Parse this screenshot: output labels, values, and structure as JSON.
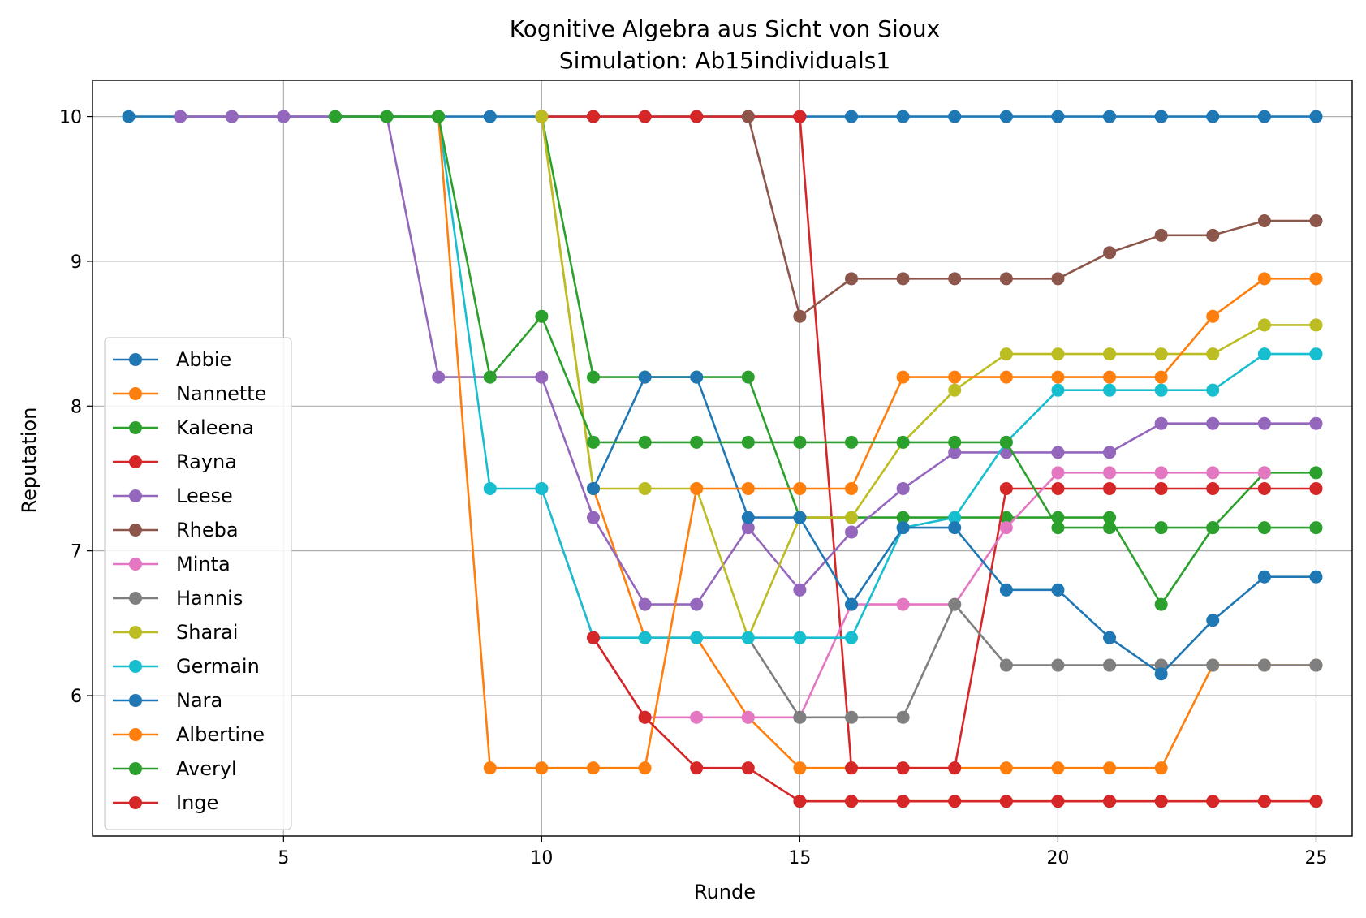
{
  "chart_data": {
    "type": "line",
    "title": "Kognitive Algebra aus Sicht von Sioux",
    "subtitle": "Simulation: Ab15individuals1",
    "xlabel": "Runde",
    "ylabel": "Reputation",
    "xlim": [
      1.3,
      25.7
    ],
    "ylim": [
      5.03,
      10.25
    ],
    "xticks": [
      5,
      10,
      15,
      20,
      25
    ],
    "yticks": [
      6,
      7,
      8,
      9,
      10
    ],
    "grid": true,
    "legend_position": "lower-left",
    "series": [
      {
        "name": "Abbie",
        "color": "#1f77b4",
        "x": [
          2,
          3,
          4,
          5,
          6,
          7,
          8,
          9,
          10,
          11,
          12,
          13,
          14,
          15,
          16,
          17,
          18,
          19,
          20,
          21,
          22,
          23,
          24,
          25
        ],
        "y": [
          10,
          10,
          10,
          10,
          10,
          10,
          10,
          10,
          10,
          10,
          10,
          10,
          10,
          10,
          10,
          10,
          10,
          10,
          10,
          10,
          10,
          10,
          10,
          10
        ]
      },
      {
        "name": "Nannette",
        "color": "#ff7f0e",
        "x": [
          10,
          11,
          12,
          13,
          14,
          15,
          16,
          17,
          18,
          19,
          20,
          21,
          22,
          23,
          24,
          25
        ],
        "y": [
          10,
          7.43,
          6.4,
          6.4,
          5.85,
          5.5,
          5.5,
          5.5,
          5.5,
          5.5,
          5.5,
          5.5,
          5.5,
          6.21,
          6.21,
          6.21
        ]
      },
      {
        "name": "Kaleena",
        "color": "#2ca02c",
        "x": [
          10,
          11,
          12,
          13,
          14,
          15,
          16,
          17,
          18,
          19,
          20,
          21,
          22,
          23,
          24,
          25
        ],
        "y": [
          10,
          8.2,
          8.2,
          8.2,
          8.2,
          7.23,
          7.23,
          7.23,
          7.23,
          7.23,
          7.23,
          7.23,
          6.63,
          7.16,
          7.54,
          7.54
        ]
      },
      {
        "name": "Rayna",
        "color": "#d62728",
        "x": [
          10,
          11,
          12,
          13,
          14,
          15,
          16,
          17,
          18,
          19,
          20,
          21,
          22,
          23,
          24,
          25
        ],
        "y": [
          10,
          10,
          10,
          10,
          10,
          10,
          5.5,
          5.5,
          5.5,
          7.43,
          7.43,
          7.43,
          7.43,
          7.43,
          7.43,
          7.43
        ]
      },
      {
        "name": "Leese",
        "color": "#9467bd",
        "x": [
          3,
          4,
          5,
          6,
          7,
          8,
          9,
          10,
          11,
          12,
          13,
          14,
          15,
          16,
          17,
          18,
          19,
          20,
          21,
          22,
          23,
          24,
          25
        ],
        "y": [
          10,
          10,
          10,
          10,
          10,
          8.2,
          8.2,
          8.2,
          7.23,
          6.63,
          6.63,
          7.16,
          6.73,
          7.13,
          7.43,
          7.68,
          7.68,
          7.68,
          7.68,
          7.88,
          7.88,
          7.88,
          7.88
        ]
      },
      {
        "name": "Rheba",
        "color": "#8c564b",
        "x": [
          14,
          15,
          16,
          17,
          18,
          19,
          20,
          21,
          22,
          23,
          24,
          25
        ],
        "y": [
          10,
          8.62,
          8.88,
          8.88,
          8.88,
          8.88,
          8.88,
          9.06,
          9.18,
          9.18,
          9.28,
          9.28
        ]
      },
      {
        "name": "Minta",
        "color": "#e377c2",
        "x": [
          10,
          11,
          12,
          13,
          14,
          15,
          16,
          17,
          18,
          19,
          20,
          21,
          22,
          23,
          24
        ],
        "y": [
          7.43,
          6.4,
          5.85,
          5.85,
          5.85,
          5.85,
          6.63,
          6.63,
          6.63,
          7.16,
          7.54,
          7.54,
          7.54,
          7.54,
          7.54
        ]
      },
      {
        "name": "Hannis",
        "color": "#7f7f7f",
        "x": [
          13,
          14,
          15,
          16,
          17,
          18,
          19,
          20,
          21,
          22,
          23,
          24,
          25
        ],
        "y": [
          6.4,
          6.4,
          5.85,
          5.85,
          5.85,
          6.63,
          6.21,
          6.21,
          6.21,
          6.21,
          6.21,
          6.21,
          6.21
        ]
      },
      {
        "name": "Sharai",
        "color": "#bcbd22",
        "x": [
          10,
          11,
          12,
          13,
          14,
          15,
          16,
          17,
          18,
          19,
          20,
          21,
          22,
          23,
          24,
          25
        ],
        "y": [
          10,
          7.43,
          7.43,
          7.43,
          6.4,
          7.23,
          7.23,
          7.75,
          8.11,
          8.36,
          8.36,
          8.36,
          8.36,
          8.36,
          8.56,
          8.56
        ]
      },
      {
        "name": "Germain",
        "color": "#17becf",
        "x": [
          8,
          9,
          10,
          11,
          12,
          13,
          14,
          15,
          16,
          17,
          18,
          19,
          20,
          21,
          22,
          23,
          24,
          25
        ],
        "y": [
          10,
          7.43,
          7.43,
          6.4,
          6.4,
          6.4,
          6.4,
          6.4,
          6.4,
          7.16,
          7.23,
          7.75,
          8.11,
          8.11,
          8.11,
          8.11,
          8.36,
          8.36
        ]
      },
      {
        "name": "Nara",
        "color": "#1f77b4",
        "x": [
          11,
          12,
          13,
          14,
          15,
          16,
          17,
          18,
          19,
          20,
          21,
          22,
          23,
          24,
          25
        ],
        "y": [
          7.43,
          8.2,
          8.2,
          7.23,
          7.23,
          6.63,
          7.16,
          7.16,
          6.73,
          6.73,
          6.4,
          6.15,
          6.52,
          6.82,
          6.82
        ]
      },
      {
        "name": "Albertine",
        "color": "#ff7f0e",
        "x": [
          8,
          9,
          10,
          11,
          12,
          13,
          14,
          15,
          16,
          17,
          18,
          19,
          20,
          21,
          22,
          23,
          24,
          25
        ],
        "y": [
          10,
          5.5,
          5.5,
          5.5,
          5.5,
          7.43,
          7.43,
          7.43,
          7.43,
          8.2,
          8.2,
          8.2,
          8.2,
          8.2,
          8.2,
          8.62,
          8.88,
          8.88
        ]
      },
      {
        "name": "Averyl",
        "color": "#2ca02c",
        "x": [
          6,
          7,
          8,
          9,
          10,
          11,
          12,
          13,
          14,
          15,
          16,
          17,
          18,
          19,
          20,
          21,
          22,
          23,
          24,
          25
        ],
        "y": [
          10,
          10,
          10,
          8.2,
          8.62,
          7.75,
          7.75,
          7.75,
          7.75,
          7.75,
          7.75,
          7.75,
          7.75,
          7.75,
          7.16,
          7.16,
          7.16,
          7.16,
          7.16,
          7.16
        ]
      },
      {
        "name": "Inge",
        "color": "#d62728",
        "x": [
          11,
          12,
          13,
          14,
          15,
          16,
          17,
          18,
          19,
          20,
          21,
          22,
          23,
          24,
          25
        ],
        "y": [
          6.4,
          5.85,
          5.5,
          5.5,
          5.27,
          5.27,
          5.27,
          5.27,
          5.27,
          5.27,
          5.27,
          5.27,
          5.27,
          5.27,
          5.27
        ]
      }
    ]
  }
}
